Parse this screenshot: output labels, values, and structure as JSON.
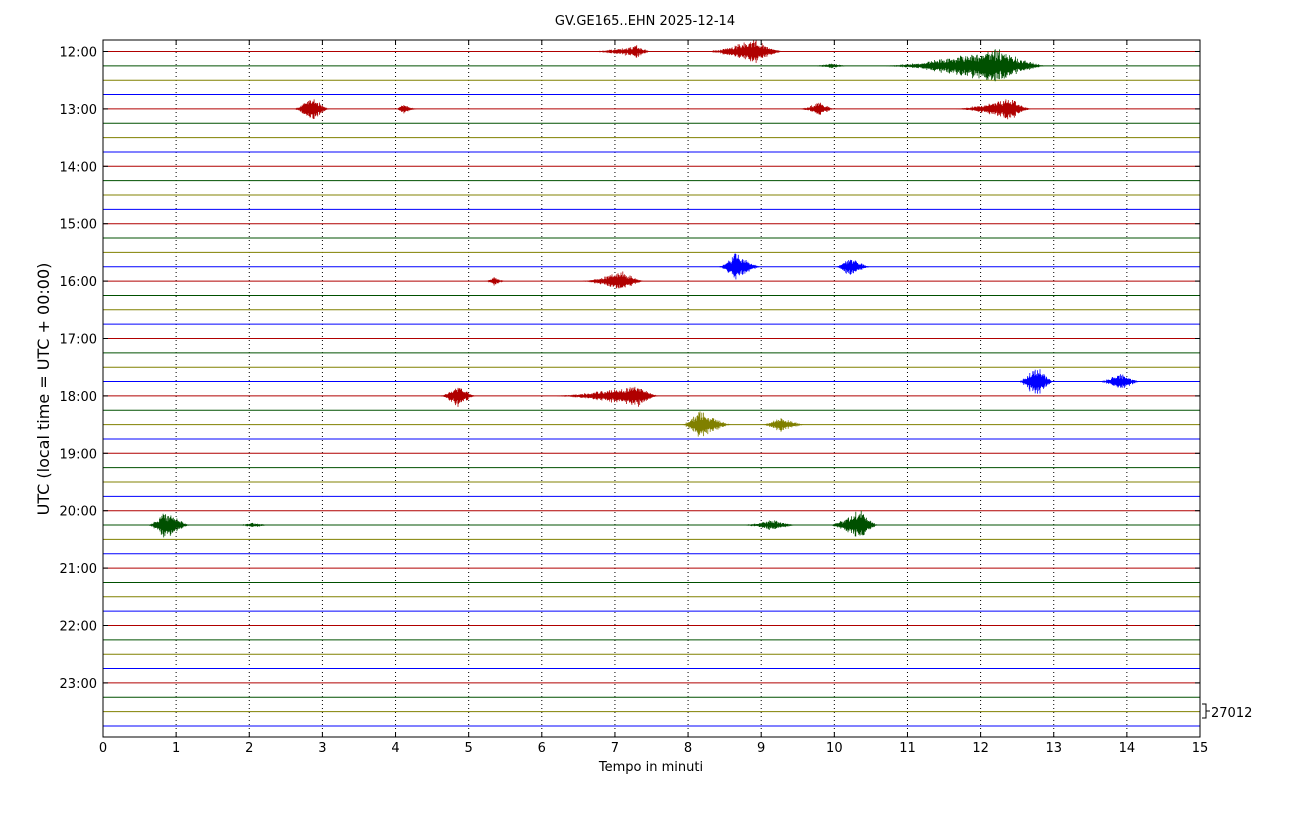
{
  "chart_data": {
    "type": "line",
    "title": "GV.GE165..EHN 2025-12-14",
    "xlabel": "Tempo in minuti",
    "ylabel": "UTC (local time = UTC + 00:00)",
    "xlim": [
      0,
      15
    ],
    "x_ticks": [
      "0",
      "1",
      "2",
      "3",
      "4",
      "5",
      "6",
      "7",
      "8",
      "9",
      "10",
      "11",
      "12",
      "13",
      "14",
      "15"
    ],
    "grid": "vertical dotted at each minute",
    "row_minutes": 15,
    "start_hour": 12,
    "y_tick_labels": [
      "12:00",
      "13:00",
      "14:00",
      "15:00",
      "16:00",
      "17:00",
      "18:00",
      "19:00",
      "20:00",
      "21:00",
      "22:00",
      "23:00"
    ],
    "trace_colors": [
      "#b00000",
      "#005000",
      "#808000",
      "#0000ff"
    ],
    "scale_label": "27012",
    "events": [
      {
        "row": 0,
        "start": 6.6,
        "end": 7.5,
        "peak": 7.3,
        "amp": 0.35
      },
      {
        "row": 0,
        "start": 8.2,
        "end": 9.3,
        "peak": 8.9,
        "amp": 0.75
      },
      {
        "row": 1,
        "start": 9.7,
        "end": 10.2,
        "peak": 9.95,
        "amp": 0.15
      },
      {
        "row": 1,
        "start": 10.6,
        "end": 12.9,
        "peak": 12.2,
        "amp": 1.0
      },
      {
        "row": 4,
        "start": 2.6,
        "end": 3.1,
        "peak": 2.85,
        "amp": 0.8
      },
      {
        "row": 4,
        "start": 4.0,
        "end": 4.3,
        "peak": 4.1,
        "amp": 0.3
      },
      {
        "row": 4,
        "start": 9.5,
        "end": 10.0,
        "peak": 9.8,
        "amp": 0.4
      },
      {
        "row": 4,
        "start": 11.6,
        "end": 12.7,
        "peak": 12.4,
        "amp": 0.65
      },
      {
        "row": 15,
        "start": 8.4,
        "end": 9.0,
        "peak": 8.65,
        "amp": 0.8
      },
      {
        "row": 15,
        "start": 10.0,
        "end": 10.5,
        "peak": 10.2,
        "amp": 0.55
      },
      {
        "row": 16,
        "start": 5.2,
        "end": 5.5,
        "peak": 5.35,
        "amp": 0.25
      },
      {
        "row": 16,
        "start": 6.5,
        "end": 7.4,
        "peak": 7.1,
        "amp": 0.6
      },
      {
        "row": 23,
        "start": 12.5,
        "end": 13.0,
        "peak": 12.75,
        "amp": 1.0
      },
      {
        "row": 23,
        "start": 13.6,
        "end": 14.2,
        "peak": 13.9,
        "amp": 0.5
      },
      {
        "row": 24,
        "start": 4.6,
        "end": 5.1,
        "peak": 4.85,
        "amp": 0.7
      },
      {
        "row": 24,
        "start": 6.1,
        "end": 7.6,
        "peak": 7.3,
        "amp": 0.65
      },
      {
        "row": 26,
        "start": 7.9,
        "end": 8.6,
        "peak": 8.15,
        "amp": 0.85
      },
      {
        "row": 26,
        "start": 9.0,
        "end": 9.6,
        "peak": 9.25,
        "amp": 0.45
      },
      {
        "row": 33,
        "start": 0.6,
        "end": 1.2,
        "peak": 0.85,
        "amp": 0.85
      },
      {
        "row": 33,
        "start": 1.8,
        "end": 2.3,
        "peak": 2.05,
        "amp": 0.15
      },
      {
        "row": 33,
        "start": 8.7,
        "end": 9.5,
        "peak": 9.15,
        "amp": 0.3
      },
      {
        "row": 33,
        "start": 9.9,
        "end": 10.6,
        "peak": 10.35,
        "amp": 0.9
      }
    ]
  }
}
